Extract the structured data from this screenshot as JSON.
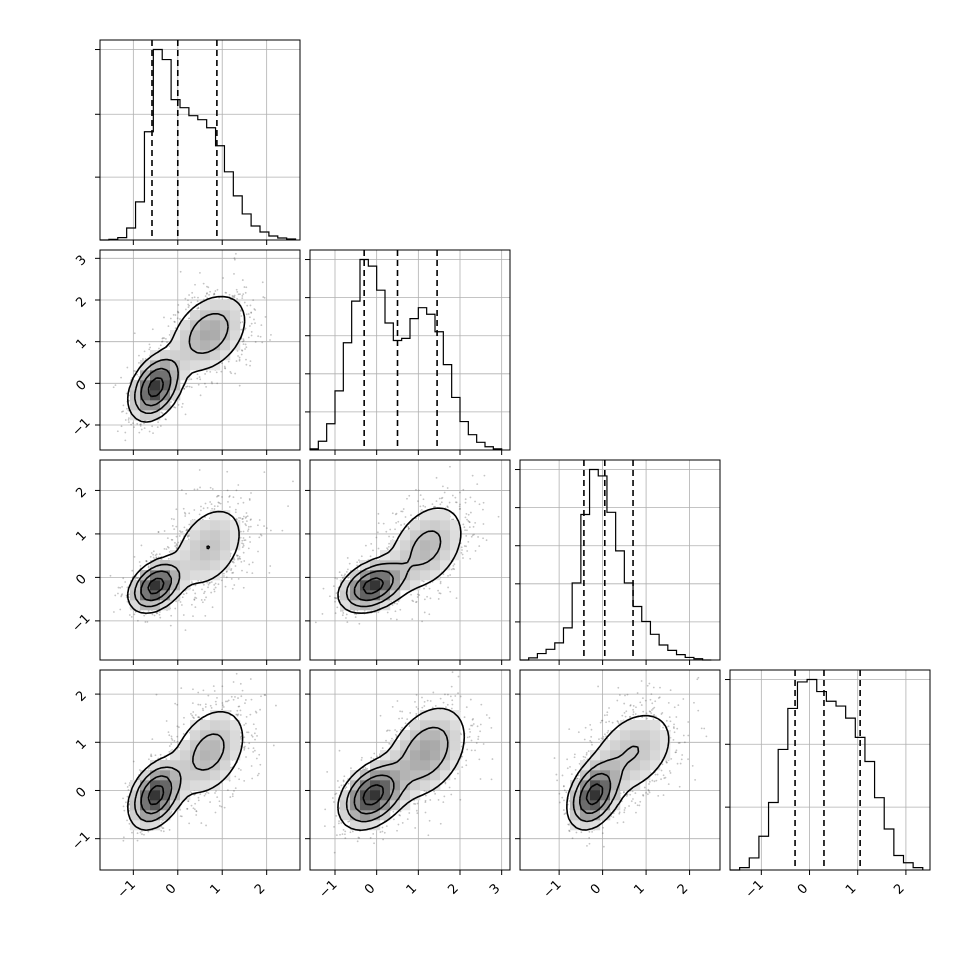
{
  "chart_data": {
    "type": "corner",
    "parameters": 4,
    "grid": true,
    "legend": "none",
    "colors": {
      "line": "#000000",
      "grid": "#b0b0b0",
      "density": "#6e6e6e",
      "points": "#555555"
    },
    "ranges": [
      [
        -1.75,
        2.75
      ],
      [
        -1.6,
        3.2
      ],
      [
        -1.9,
        2.7
      ],
      [
        -1.65,
        2.5
      ]
    ],
    "ticks": [
      [
        -1,
        0,
        1,
        2
      ],
      [
        -1,
        0,
        1,
        2,
        3
      ],
      [
        -1,
        0,
        1,
        2
      ],
      [
        -1,
        0,
        1,
        2
      ]
    ],
    "tick_labels": [
      [
        "−1",
        "0",
        "1",
        "2"
      ],
      [
        "−1",
        "0",
        "1",
        "2",
        "3"
      ],
      [
        "−1",
        "0",
        "1",
        "2"
      ],
      [
        "−1",
        "0",
        "1",
        "2"
      ]
    ],
    "quantiles": [
      [
        -0.58,
        0.0,
        0.88
      ],
      [
        -0.3,
        0.5,
        1.45
      ],
      [
        -0.43,
        0.05,
        0.7
      ],
      [
        -0.3,
        0.3,
        1.05
      ]
    ],
    "histograms": [
      {
        "edges": [
          -1.75,
          -1.55,
          -1.35,
          -1.15,
          -0.95,
          -0.75,
          -0.55,
          -0.35,
          -0.15,
          0.05,
          0.25,
          0.45,
          0.65,
          0.85,
          1.05,
          1.25,
          1.45,
          1.65,
          1.85,
          2.05,
          2.25,
          2.45,
          2.65
        ],
        "counts": [
          0.0,
          0.003,
          0.012,
          0.06,
          0.19,
          0.54,
          0.95,
          0.9,
          0.7,
          0.66,
          0.62,
          0.6,
          0.56,
          0.47,
          0.34,
          0.22,
          0.13,
          0.07,
          0.04,
          0.02,
          0.01,
          0.005
        ]
      },
      {
        "edges": [
          -1.6,
          -1.4,
          -1.2,
          -1.0,
          -0.8,
          -0.6,
          -0.4,
          -0.2,
          0.0,
          0.2,
          0.4,
          0.6,
          0.8,
          1.0,
          1.2,
          1.4,
          1.6,
          1.8,
          2.0,
          2.2,
          2.4,
          2.6,
          2.8,
          3.0
        ],
        "counts": [
          0.005,
          0.04,
          0.12,
          0.27,
          0.49,
          0.68,
          0.87,
          0.84,
          0.73,
          0.58,
          0.5,
          0.51,
          0.6,
          0.65,
          0.62,
          0.54,
          0.39,
          0.24,
          0.13,
          0.07,
          0.035,
          0.015,
          0.005
        ]
      },
      {
        "edges": [
          -1.9,
          -1.7,
          -1.5,
          -1.3,
          -1.1,
          -0.9,
          -0.7,
          -0.5,
          -0.3,
          -0.1,
          0.1,
          0.3,
          0.5,
          0.7,
          0.9,
          1.1,
          1.3,
          1.5,
          1.7,
          1.9,
          2.1,
          2.3,
          2.5
        ],
        "counts": [
          0.0,
          0.01,
          0.03,
          0.05,
          0.08,
          0.15,
          0.36,
          0.68,
          0.89,
          0.86,
          0.69,
          0.51,
          0.36,
          0.25,
          0.18,
          0.12,
          0.07,
          0.045,
          0.025,
          0.012,
          0.006,
          0.0
        ]
      },
      {
        "edges": [
          -1.65,
          -1.45,
          -1.25,
          -1.05,
          -0.85,
          -0.65,
          -0.45,
          -0.25,
          -0.05,
          0.15,
          0.35,
          0.55,
          0.75,
          0.95,
          1.15,
          1.35,
          1.55,
          1.75,
          1.95,
          2.15,
          2.35
        ],
        "counts": [
          0.0,
          0.01,
          0.05,
          0.14,
          0.28,
          0.5,
          0.67,
          0.78,
          0.79,
          0.74,
          0.7,
          0.68,
          0.63,
          0.55,
          0.45,
          0.3,
          0.17,
          0.06,
          0.03,
          0.01
        ]
      }
    ],
    "yticks_hist": [
      [
        0.33,
        0.66,
        1.0
      ],
      [
        0.2,
        0.4,
        0.6,
        0.8,
        1.0
      ],
      [
        0.2,
        0.4,
        0.6,
        0.8,
        1.0
      ],
      [
        0.33,
        0.66,
        1.0
      ]
    ],
    "mixture": {
      "weights": [
        0.5,
        0.5
      ],
      "means": [
        [
          -0.5,
          -0.1,
          -0.2,
          -0.1
        ],
        [
          0.7,
          1.2,
          0.7,
          0.8
        ]
      ],
      "sds": [
        [
          0.3,
          0.4,
          0.3,
          0.35
        ],
        [
          0.5,
          0.55,
          0.6,
          0.55
        ]
      ],
      "correlation": 0.35
    }
  }
}
